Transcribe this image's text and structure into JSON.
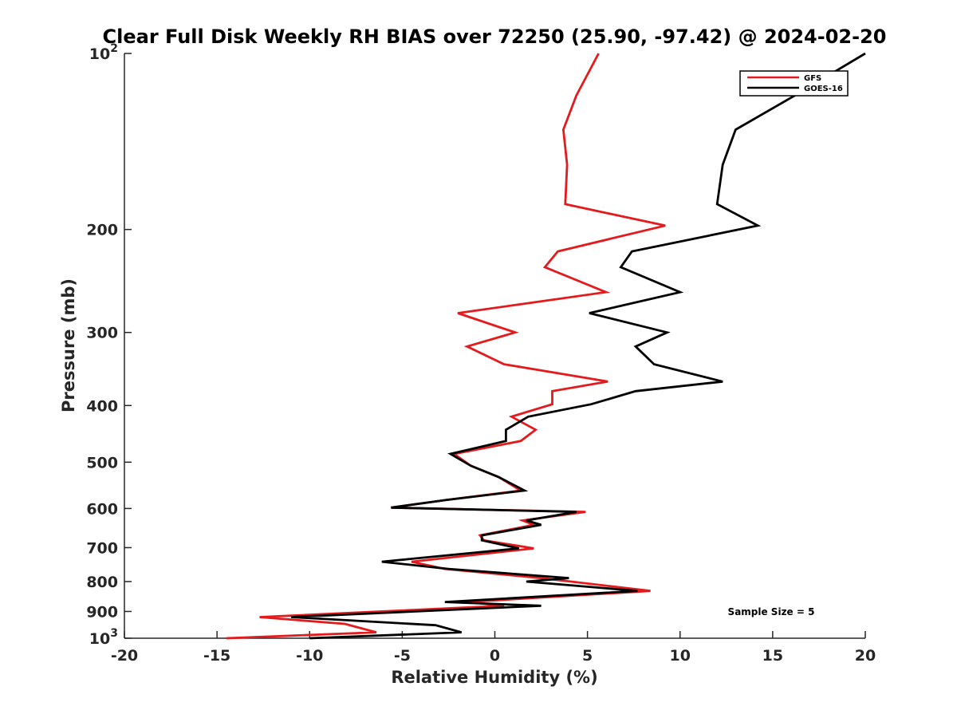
{
  "chart_data": {
    "type": "line",
    "title": "Clear Full Disk Weekly RH BIAS over 72250 (25.90, -97.42) @ 2024-02-20",
    "xlabel": "Relative Humidity (%)",
    "ylabel": "Pressure (mb)",
    "xlim": [
      -20,
      20
    ],
    "ylim": [
      100,
      1000
    ],
    "y_scale": "log",
    "y_reversed": true,
    "x_ticks": [
      "-20",
      "-15",
      "-10",
      "-5",
      "0",
      "5",
      "10",
      "15",
      "20"
    ],
    "y_ticks": [
      {
        "value": 100,
        "base": "10",
        "exp": "2"
      },
      {
        "value": 200,
        "label": "200"
      },
      {
        "value": 300,
        "label": "300"
      },
      {
        "value": 400,
        "label": "400"
      },
      {
        "value": 500,
        "label": "500"
      },
      {
        "value": 600,
        "label": "600"
      },
      {
        "value": 700,
        "label": "700"
      },
      {
        "value": 800,
        "label": "800"
      },
      {
        "value": 900,
        "label": "900"
      },
      {
        "value": 1000,
        "base": "10",
        "exp": "3"
      }
    ],
    "grid": false,
    "legend_position": "top-right",
    "annotation": "Sample Size = 5",
    "series": [
      {
        "name": "GFS",
        "color": "#e41a1c",
        "points": [
          [
            5.6,
            100
          ],
          [
            4.4,
            118
          ],
          [
            3.7,
            135
          ],
          [
            3.9,
            155
          ],
          [
            3.8,
            181
          ],
          [
            9.2,
            197
          ],
          [
            3.4,
            218
          ],
          [
            2.7,
            232
          ],
          [
            6.0,
            256
          ],
          [
            -2.0,
            278
          ],
          [
            1.1,
            300
          ],
          [
            -1.5,
            317
          ],
          [
            0.5,
            340
          ],
          [
            6.1,
            364
          ],
          [
            3.1,
            378
          ],
          [
            3.1,
            398
          ],
          [
            0.9,
            418
          ],
          [
            2.2,
            440
          ],
          [
            1.4,
            460
          ],
          [
            -2.2,
            484
          ],
          [
            -1.3,
            507
          ],
          [
            0.2,
            530
          ],
          [
            1.4,
            559
          ],
          [
            -2.6,
            580
          ],
          [
            -5.6,
            598
          ],
          [
            4.9,
            608
          ],
          [
            1.5,
            629
          ],
          [
            2.1,
            640
          ],
          [
            -0.8,
            667
          ],
          [
            -0.6,
            680
          ],
          [
            2.1,
            702
          ],
          [
            -4.5,
            740
          ],
          [
            -2.7,
            761
          ],
          [
            2.5,
            789
          ],
          [
            8.4,
            830
          ],
          [
            -1.5,
            867
          ],
          [
            0.5,
            880
          ],
          [
            -12.7,
            920
          ],
          [
            -8.1,
            945
          ],
          [
            -6.4,
            977
          ],
          [
            -14.5,
            1000
          ]
        ]
      },
      {
        "name": "GOES-16",
        "color": "#000000",
        "points": [
          [
            20.0,
            100
          ],
          [
            16.2,
            118
          ],
          [
            13.0,
            135
          ],
          [
            12.3,
            155
          ],
          [
            12.0,
            181
          ],
          [
            14.2,
            197
          ],
          [
            7.4,
            218
          ],
          [
            6.8,
            232
          ],
          [
            10.0,
            256
          ],
          [
            5.1,
            278
          ],
          [
            9.3,
            300
          ],
          [
            7.6,
            317
          ],
          [
            8.6,
            340
          ],
          [
            12.3,
            364
          ],
          [
            7.6,
            378
          ],
          [
            5.2,
            398
          ],
          [
            1.8,
            418
          ],
          [
            0.6,
            440
          ],
          [
            0.6,
            460
          ],
          [
            -2.4,
            484
          ],
          [
            -1.3,
            507
          ],
          [
            0.2,
            530
          ],
          [
            1.6,
            559
          ],
          [
            -2.6,
            580
          ],
          [
            -5.6,
            598
          ],
          [
            4.4,
            608
          ],
          [
            1.7,
            629
          ],
          [
            2.5,
            640
          ],
          [
            -0.7,
            667
          ],
          [
            -0.7,
            680
          ],
          [
            1.3,
            702
          ],
          [
            -6.1,
            740
          ],
          [
            -2.5,
            761
          ],
          [
            4.0,
            789
          ],
          [
            1.7,
            800
          ],
          [
            7.7,
            830
          ],
          [
            -2.7,
            867
          ],
          [
            2.5,
            880
          ],
          [
            -11.0,
            920
          ],
          [
            -3.2,
            950
          ],
          [
            -1.8,
            977
          ],
          [
            -10.0,
            1000
          ]
        ]
      }
    ]
  }
}
